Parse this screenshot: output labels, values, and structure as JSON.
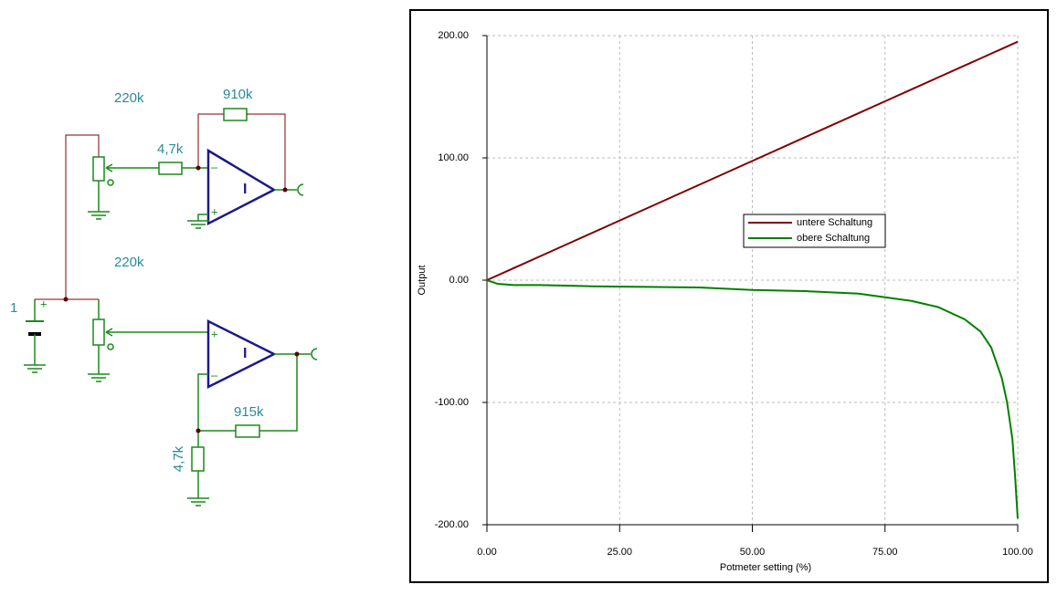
{
  "diagram": {
    "labels": {
      "pot_top": "220k",
      "r_feedback_top": "910k",
      "r_input_top": "4,7k",
      "pot_bottom": "220k",
      "source": "1",
      "source_plus": "+",
      "r_feedback_bottom": "915k",
      "r_ground_bottom": "4,7k",
      "opamp_top_minus": "–",
      "opamp_top_plus": "+",
      "opamp_top_symbol": "I",
      "opamp_bottom_plus": "+",
      "opamp_bottom_minus": "–",
      "opamp_bottom_symbol": "I"
    }
  },
  "chart_data": {
    "type": "line",
    "x_label": "Potmeter setting (%)",
    "y_label": "Output",
    "x": [
      0,
      2,
      5,
      10,
      20,
      30,
      40,
      50,
      60,
      70,
      75,
      80,
      85,
      90,
      93,
      95,
      97,
      98,
      99,
      99.5,
      100
    ],
    "series": [
      {
        "name": "untere Schaltung",
        "color": "#800000",
        "values": [
          0,
          3.9,
          9.75,
          19.5,
          39,
          58.5,
          78,
          97.5,
          117,
          136.5,
          146.25,
          156,
          165.75,
          175.5,
          181.35,
          185.25,
          189.15,
          191.1,
          193.05,
          194.03,
          195
        ]
      },
      {
        "name": "obere Schaltung",
        "color": "#008000",
        "values": [
          0,
          -3,
          -4,
          -4,
          -5,
          -5.5,
          -6,
          -8,
          -9,
          -11,
          -14,
          -17,
          -22,
          -32,
          -42,
          -55,
          -80,
          -100,
          -130,
          -160,
          -195
        ]
      }
    ],
    "xlim": [
      0,
      100
    ],
    "ylim": [
      -200,
      200
    ],
    "xticks": [
      {
        "value": 0,
        "label": "0.00"
      },
      {
        "value": 25,
        "label": "25.00"
      },
      {
        "value": 50,
        "label": "50.00"
      },
      {
        "value": 75,
        "label": "75.00"
      },
      {
        "value": 100,
        "label": "100.00"
      }
    ],
    "yticks": [
      {
        "value": -200,
        "label": "-200.00"
      },
      {
        "value": -100,
        "label": "-100.00"
      },
      {
        "value": 0,
        "label": "0.00"
      },
      {
        "value": 100,
        "label": "100.00"
      },
      {
        "value": 200,
        "label": "200.00"
      }
    ],
    "grid": true,
    "legend": "center"
  }
}
